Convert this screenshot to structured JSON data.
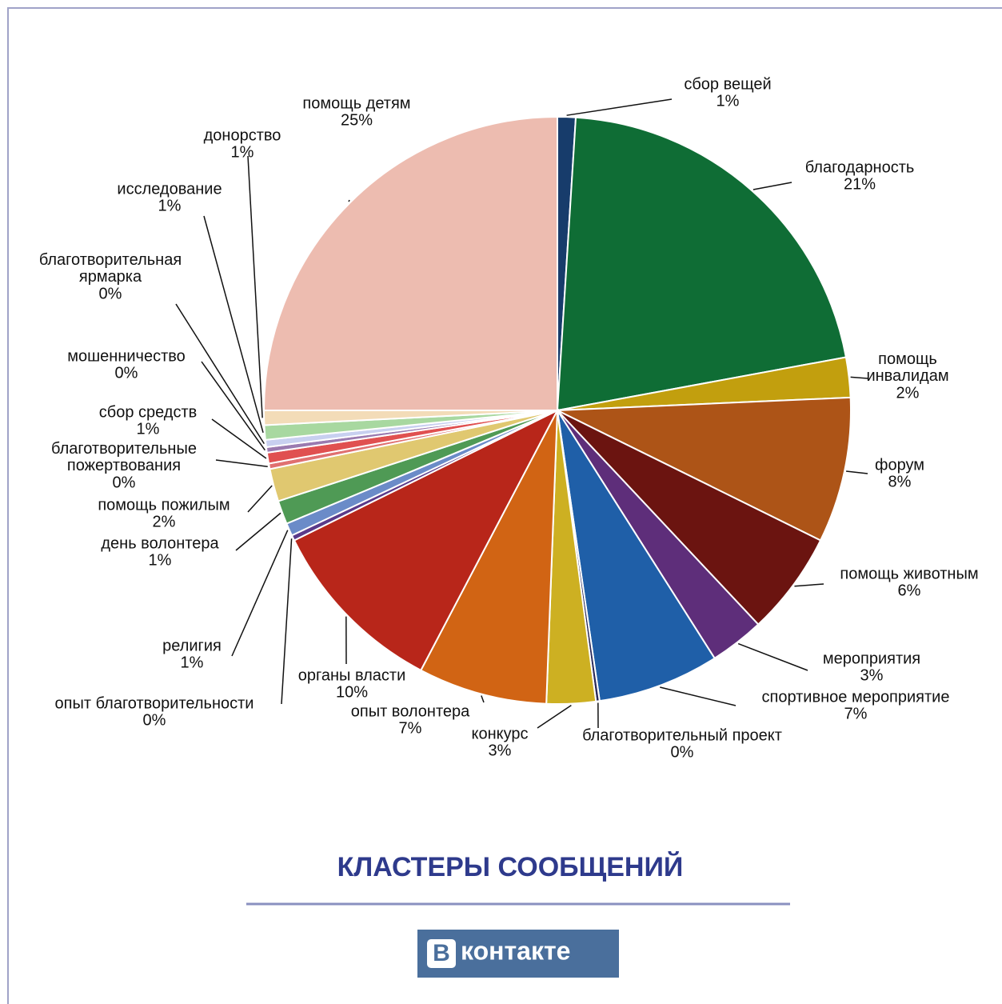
{
  "chart_data": {
    "type": "pie",
    "title": "КЛАСТЕРЫ СООБЩЕНИЙ",
    "categories": [
      "сбор вещей",
      "благодарность",
      "помощь инвалидам",
      "форум",
      "помощь животным",
      "мероприятия",
      "спортивное мероприятие",
      "благотворительный проект",
      "конкурс",
      "опыт волонтера",
      "органы власти",
      "опыт благотворительности",
      "религия",
      "день волонтера",
      "помощь пожилым",
      "благотворительные пожертвования",
      "сбор средств",
      "мошенничество",
      "благотворительная ярмарка",
      "исследование",
      "донорство",
      "помощь детям"
    ],
    "values": [
      1.0,
      21.1,
      2.2,
      8.0,
      5.7,
      3.0,
      6.7,
      0.2,
      2.7,
      7.1,
      10.0,
      0.3,
      0.7,
      1.3,
      1.8,
      0.3,
      0.6,
      0.3,
      0.4,
      0.8,
      0.8,
      25.0
    ],
    "value_labels": [
      "1%",
      "21%",
      "2%",
      "8%",
      "6%",
      "3%",
      "7%",
      "0%",
      "3%",
      "7%",
      "10%",
      "0%",
      "1%",
      "1%",
      "2%",
      "0%",
      "1%",
      "0%",
      "0%",
      "1%",
      "1%",
      "25%"
    ],
    "colors": [
      "#173c6b",
      "#0f6d35",
      "#c29f0e",
      "#ad5417",
      "#6b1410",
      "#5e2e7a",
      "#1f5fa8",
      "#2a2a5a",
      "#cdb022",
      "#d16414",
      "#b8261a",
      "#5a3a8a",
      "#6b8bc8",
      "#4f9a55",
      "#e0c870",
      "#e07070",
      "#e05050",
      "#9a7ab0",
      "#c8d0f0",
      "#a8d8a0",
      "#f3dcb8",
      "#edbcb0"
    ]
  },
  "logo": {
    "letter": "В",
    "text": "контакте"
  }
}
